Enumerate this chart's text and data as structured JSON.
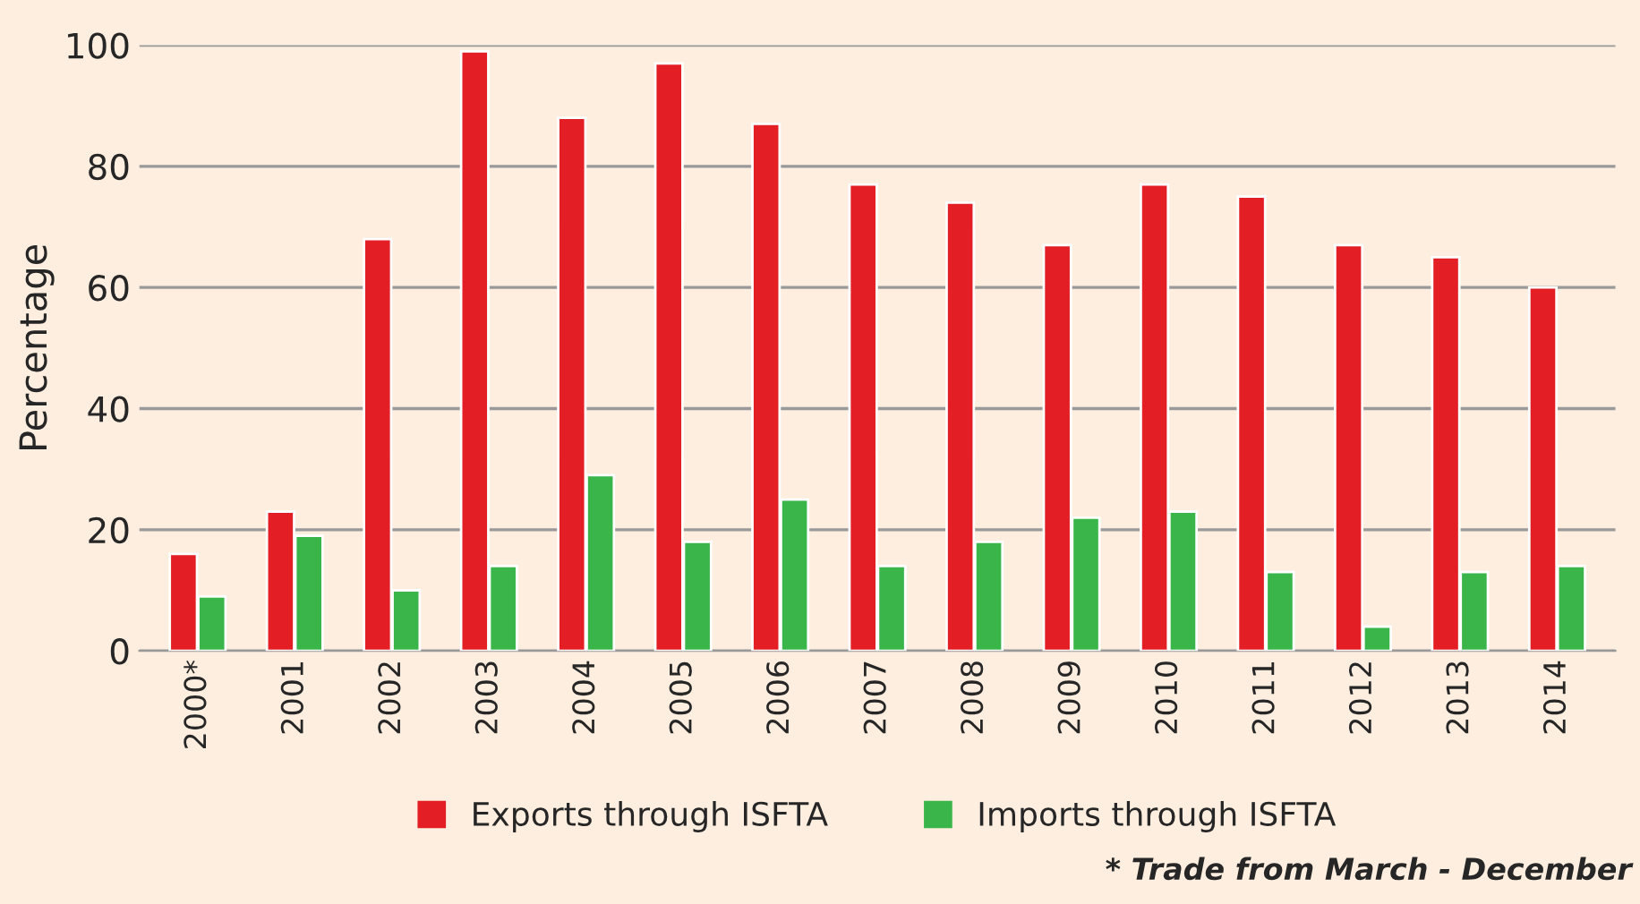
{
  "chart_data": {
    "type": "bar",
    "ylabel": "Percentage",
    "categories": [
      "2000*",
      "2001",
      "2002",
      "2003",
      "2004",
      "2005",
      "2006",
      "2007",
      "2008",
      "2009",
      "2010",
      "2011",
      "2012",
      "2013",
      "2014"
    ],
    "series": [
      {
        "name": "Exports through ISFTA",
        "color": "#e31e24",
        "values": [
          16,
          23,
          68,
          99,
          88,
          97,
          87,
          77,
          74,
          67,
          77,
          75,
          67,
          65,
          60
        ]
      },
      {
        "name": "Imports through ISFTA",
        "color": "#39b54a",
        "values": [
          9,
          19,
          10,
          14,
          29,
          18,
          25,
          14,
          18,
          22,
          23,
          13,
          4,
          13,
          14
        ]
      }
    ],
    "ylim": [
      0,
      100
    ],
    "yticks": [
      0,
      20,
      40,
      60,
      80,
      100
    ],
    "grid": "y",
    "legend": "bottom",
    "annotations": [
      "* Trade from March - December"
    ]
  }
}
